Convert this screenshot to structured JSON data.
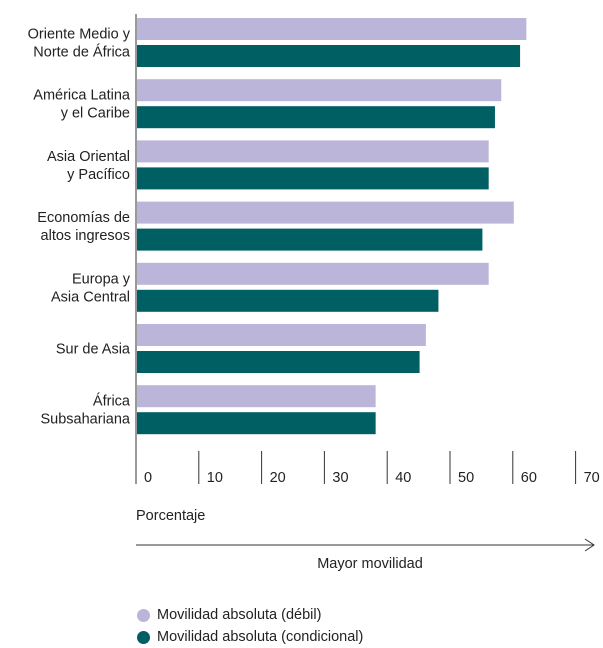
{
  "chart_data": {
    "type": "bar",
    "orientation": "horizontal",
    "categories": [
      [
        "Oriente Medio y",
        "Norte de África"
      ],
      [
        "América Latina",
        "y el Caribe"
      ],
      [
        "Asia Oriental",
        "y Pacífico"
      ],
      [
        "Economías de",
        "altos ingresos"
      ],
      [
        "Europa y",
        "Asia Central"
      ],
      [
        "Sur de Asia"
      ],
      [
        "África",
        "Subsahariana"
      ]
    ],
    "series": [
      {
        "name": "Movilidad absoluta (débil)",
        "color": "#bbb5d9",
        "values": [
          62,
          58,
          56,
          60,
          56,
          46,
          38
        ]
      },
      {
        "name": "Movilidad absoluta (condicional)",
        "color": "#005f63",
        "values": [
          61,
          57,
          56,
          55,
          48,
          45,
          38
        ]
      }
    ],
    "xlim": [
      0,
      70
    ],
    "xticks": [
      "0",
      "10",
      "20",
      "30",
      "40",
      "50",
      "60",
      "70"
    ],
    "xlabel": "Porcentaje",
    "arrow_label": "Mayor movilidad",
    "grid": false,
    "legend_position": "bottom"
  }
}
